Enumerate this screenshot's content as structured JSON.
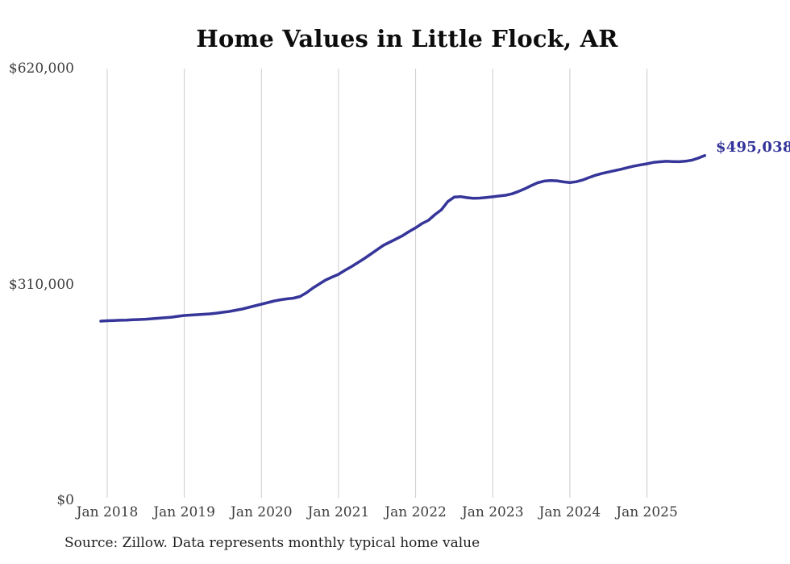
{
  "title": "Home Values in Little Flock, AR",
  "end_label": "$495,038",
  "source_note": "Source: Zillow. Data represents monthly typical home value",
  "colors": {
    "line": "#35359a",
    "end_label": "#34349b",
    "grid": "#cccccc",
    "tick_text": "#3d3d3d",
    "title_text": "#0d0d0d",
    "source_text": "#1f1f1f",
    "background": "#ffffff"
  },
  "y_axis": {
    "ticks": [
      {
        "label": "$620,000",
        "value": 620000
      },
      {
        "label": "$310,000",
        "value": 310000
      },
      {
        "label": "$0",
        "value": 0
      }
    ]
  },
  "x_axis": {
    "ticks": [
      {
        "label": "Jan 2018",
        "month": "2018-01"
      },
      {
        "label": "Jan 2019",
        "month": "2019-01"
      },
      {
        "label": "Jan 2020",
        "month": "2020-01"
      },
      {
        "label": "Jan 2021",
        "month": "2021-01"
      },
      {
        "label": "Jan 2022",
        "month": "2022-01"
      },
      {
        "label": "Jan 2023",
        "month": "2023-01"
      },
      {
        "label": "Jan 2024",
        "month": "2024-01"
      },
      {
        "label": "Jan 2025",
        "month": "2025-01"
      }
    ]
  },
  "chart_data": {
    "type": "line",
    "title": "Home Values in Little Flock, AR",
    "series_name": "Typical home value (monthly, Zillow)",
    "frequency": "monthly",
    "start_month": "2017-12",
    "end_month": "2025-10",
    "values": [
      257300,
      257900,
      258200,
      258500,
      258800,
      259200,
      259600,
      260100,
      260700,
      261500,
      262200,
      263000,
      264200,
      265400,
      266000,
      266500,
      267100,
      267700,
      268800,
      270000,
      271200,
      272900,
      274700,
      277000,
      279300,
      281600,
      283900,
      286300,
      288000,
      289200,
      290300,
      292600,
      297900,
      304800,
      310600,
      316400,
      320500,
      324500,
      330300,
      335500,
      341300,
      347100,
      353500,
      359900,
      366200,
      370800,
      375500,
      380200,
      386000,
      391300,
      397500,
      402100,
      410200,
      417200,
      429000,
      435400,
      436100,
      434600,
      433800,
      434000,
      434900,
      435800,
      437000,
      438100,
      440100,
      443500,
      447500,
      452000,
      456000,
      458500,
      459300,
      458800,
      457300,
      456300,
      457500,
      460000,
      463500,
      466800,
      469500,
      471400,
      473500,
      475500,
      477800,
      480000,
      481700,
      483200,
      485200,
      486200,
      486800,
      486500,
      486300,
      487000,
      488500,
      491500,
      495038
    ],
    "last_value": 495038,
    "last_value_label": "$495,038",
    "ylim": [
      0,
      620000
    ],
    "y_tick_values": [
      0,
      310000,
      620000
    ],
    "x_tick_months": [
      "2018-01",
      "2019-01",
      "2020-01",
      "2021-01",
      "2022-01",
      "2023-01",
      "2024-01",
      "2025-01"
    ],
    "grid": "vertical-only",
    "legend": "none"
  }
}
